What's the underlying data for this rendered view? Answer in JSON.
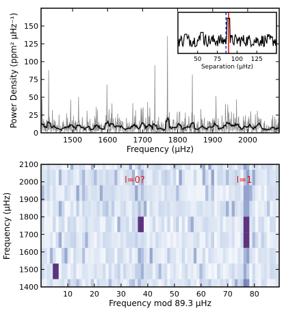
{
  "chart_data": [
    {
      "type": "line",
      "xlabel": "Frequency (μHz)",
      "ylabel": "Power Density (ppm² μHz⁻¹)",
      "xlim": [
        1410,
        2090
      ],
      "ylim": [
        0,
        175
      ],
      "xticks": [
        "1500",
        "1600",
        "1700",
        "1800",
        "1900",
        "2000"
      ],
      "yticks": [
        "0",
        "25",
        "50",
        "75",
        "100",
        "125",
        "150"
      ],
      "series": [
        {
          "color": "#8a8a8a",
          "style": "raw spectrum"
        },
        {
          "color": "#000000",
          "style": "smoothed spectrum"
        }
      ],
      "notable_peaks": [
        {
          "x": 1432,
          "y": 88
        },
        {
          "x": 1598,
          "y": 68
        },
        {
          "x": 1735,
          "y": 95
        },
        {
          "x": 1771,
          "y": 136
        },
        {
          "x": 1842,
          "y": 82
        },
        {
          "x": 1968,
          "y": 47
        }
      ],
      "inset": {
        "type": "line",
        "xlabel": "Separation (μHz)",
        "xlim": [
          25,
          150
        ],
        "xticks": [
          "50",
          "75",
          "100",
          "125"
        ],
        "vlines": [
          {
            "x": 86,
            "color": "#1f3fd6",
            "style": "dashed"
          },
          {
            "x": 89.3,
            "color": "#e8150f",
            "style": "solid"
          }
        ]
      }
    },
    {
      "type": "heatmap",
      "xlabel": "Frequency mod 89.3 μHz",
      "ylabel": "Frequency (μHz)",
      "xlim": [
        0,
        89.3
      ],
      "ylim": [
        1400,
        2100
      ],
      "xticks": [
        "10",
        "20",
        "30",
        "40",
        "50",
        "60",
        "70",
        "80"
      ],
      "yticks": [
        "1400",
        "1500",
        "1600",
        "1700",
        "1800",
        "1900",
        "2000",
        "2100"
      ],
      "colormap": [
        "#f4f7fc",
        "#c9d7ec",
        "#7e8fc0",
        "#5a2a7a"
      ],
      "annotations": [
        {
          "text": "l=0?",
          "x": 37,
          "y": 2005
        },
        {
          "text": "l=1",
          "x": 76,
          "y": 2005
        }
      ],
      "strong_cells": [
        {
          "x": 37,
          "y": 1720
        },
        {
          "x": 76.5,
          "y": 1720
        },
        {
          "x": 76.5,
          "y": 1630
        },
        {
          "x": 5,
          "y": 1450
        }
      ]
    }
  ]
}
